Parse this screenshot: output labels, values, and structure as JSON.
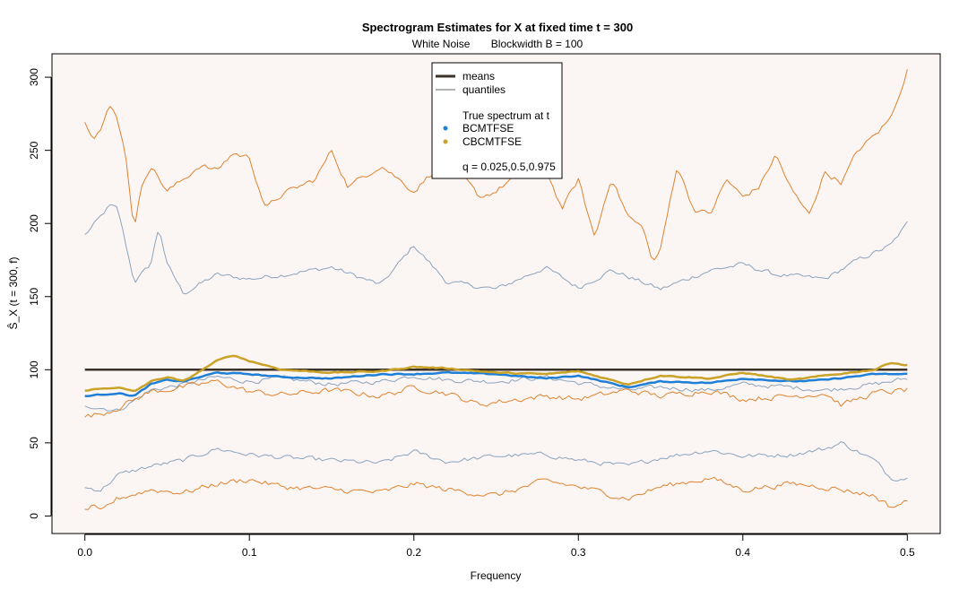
{
  "chart_data": {
    "type": "line",
    "title": "Spectrogram Estimates for X at fixed time t = 300",
    "subtitle": "White Noise       Blockwidth B = 100",
    "xlabel": "Frequency",
    "ylabel": "Ŝ_X (t = 300, f)",
    "xlim": [
      -0.02,
      0.52
    ],
    "ylim": [
      -12,
      316
    ],
    "x_ticks": [
      0.0,
      0.1,
      0.2,
      0.3,
      0.4,
      0.5
    ],
    "x_tick_labels": [
      "0.0",
      "0.1",
      "0.2",
      "0.3",
      "0.4",
      "0.5"
    ],
    "y_ticks": [
      0,
      50,
      100,
      150,
      200,
      250,
      300
    ],
    "y_tick_labels": [
      "0",
      "50",
      "100",
      "150",
      "200",
      "250",
      "300"
    ],
    "grid": false,
    "legend_position": "top-center",
    "legend": {
      "items": [
        "means",
        "quantiles"
      ],
      "heading": "True spectrum at t",
      "methods": [
        "BCMTFSE",
        "CBCMTFSE"
      ],
      "note": "q = 0.025,0.5,0.975"
    },
    "colors": {
      "true_spectrum": "#3b3228",
      "bcmtfse": "#1f7fd6",
      "cbcmtfse": "#c9a227",
      "bc_quantile": "#8aa3bd",
      "cbc_quantile": "#e0822e",
      "plot_background": "#fbf6f4"
    },
    "series": [
      {
        "name": "True spectrum at t",
        "role": "true",
        "x": [
          0.0,
          0.5
        ],
        "values": [
          100,
          100
        ]
      },
      {
        "name": "BCMTFSE",
        "role": "mean",
        "x": [
          0.0,
          0.02,
          0.03,
          0.04,
          0.05,
          0.06,
          0.08,
          0.1,
          0.12,
          0.15,
          0.18,
          0.2,
          0.22,
          0.25,
          0.28,
          0.3,
          0.33,
          0.35,
          0.38,
          0.4,
          0.43,
          0.45,
          0.48,
          0.5
        ],
        "values": [
          82,
          84,
          82,
          90,
          93,
          92,
          98,
          97,
          95,
          94,
          97,
          97,
          98,
          97,
          94,
          96,
          88,
          92,
          91,
          94,
          92,
          93,
          97,
          97
        ]
      },
      {
        "name": "CBCMTFSE",
        "role": "mean",
        "x": [
          0.0,
          0.02,
          0.03,
          0.04,
          0.05,
          0.06,
          0.08,
          0.09,
          0.1,
          0.12,
          0.15,
          0.18,
          0.2,
          0.22,
          0.25,
          0.28,
          0.3,
          0.33,
          0.35,
          0.38,
          0.4,
          0.43,
          0.45,
          0.48,
          0.49,
          0.5
        ],
        "values": [
          86,
          88,
          85,
          92,
          95,
          92,
          106,
          110,
          106,
          100,
          98,
          99,
          102,
          101,
          98,
          97,
          99,
          90,
          96,
          94,
          98,
          93,
          96,
          100,
          105,
          103
        ]
      },
      {
        "name": "BCMTFSE q0.975",
        "role": "quantile",
        "x": [
          0.0,
          0.01,
          0.015,
          0.02,
          0.025,
          0.03,
          0.04,
          0.045,
          0.05,
          0.06,
          0.08,
          0.1,
          0.12,
          0.15,
          0.18,
          0.2,
          0.22,
          0.25,
          0.28,
          0.3,
          0.32,
          0.35,
          0.38,
          0.4,
          0.42,
          0.45,
          0.47,
          0.49,
          0.5
        ],
        "values": [
          192,
          205,
          212,
          210,
          185,
          160,
          172,
          198,
          172,
          152,
          165,
          162,
          165,
          170,
          158,
          185,
          160,
          155,
          170,
          156,
          168,
          155,
          168,
          172,
          165,
          162,
          175,
          185,
          200
        ]
      },
      {
        "name": "BCMTFSE q0.5",
        "role": "quantile",
        "x": [
          0.0,
          0.02,
          0.04,
          0.06,
          0.08,
          0.1,
          0.12,
          0.15,
          0.18,
          0.2,
          0.22,
          0.25,
          0.28,
          0.3,
          0.33,
          0.35,
          0.38,
          0.4,
          0.43,
          0.45,
          0.48,
          0.5
        ],
        "values": [
          76,
          72,
          86,
          90,
          95,
          92,
          94,
          90,
          92,
          96,
          93,
          92,
          95,
          91,
          86,
          88,
          86,
          90,
          88,
          86,
          90,
          94
        ]
      },
      {
        "name": "BCMTFSE q0.025",
        "role": "quantile",
        "x": [
          0.0,
          0.01,
          0.02,
          0.04,
          0.06,
          0.08,
          0.1,
          0.12,
          0.15,
          0.18,
          0.2,
          0.22,
          0.25,
          0.28,
          0.3,
          0.33,
          0.35,
          0.38,
          0.4,
          0.43,
          0.45,
          0.46,
          0.48,
          0.49,
          0.5
        ],
        "values": [
          19,
          18,
          28,
          34,
          38,
          46,
          42,
          40,
          38,
          36,
          44,
          37,
          41,
          42,
          38,
          34,
          40,
          45,
          41,
          42,
          46,
          50,
          38,
          26,
          26
        ]
      },
      {
        "name": "CBCMTFSE q0.975",
        "role": "quantile",
        "x": [
          0.0,
          0.005,
          0.01,
          0.015,
          0.02,
          0.025,
          0.03,
          0.035,
          0.04,
          0.05,
          0.06,
          0.07,
          0.08,
          0.09,
          0.1,
          0.11,
          0.12,
          0.14,
          0.15,
          0.16,
          0.18,
          0.2,
          0.22,
          0.24,
          0.25,
          0.27,
          0.28,
          0.29,
          0.3,
          0.31,
          0.32,
          0.33,
          0.34,
          0.345,
          0.35,
          0.36,
          0.37,
          0.38,
          0.39,
          0.4,
          0.41,
          0.42,
          0.43,
          0.44,
          0.45,
          0.46,
          0.47,
          0.48,
          0.49,
          0.5
        ],
        "values": [
          271,
          260,
          265,
          280,
          272,
          245,
          196,
          228,
          240,
          222,
          230,
          240,
          236,
          248,
          245,
          210,
          220,
          230,
          250,
          225,
          240,
          222,
          245,
          218,
          222,
          240,
          238,
          210,
          230,
          190,
          232,
          205,
          196,
          173,
          182,
          240,
          210,
          206,
          230,
          218,
          225,
          247,
          222,
          206,
          235,
          228,
          250,
          260,
          272,
          305
        ]
      },
      {
        "name": "CBCMTFSE q0.5",
        "role": "quantile",
        "x": [
          0.0,
          0.01,
          0.02,
          0.04,
          0.06,
          0.08,
          0.1,
          0.12,
          0.15,
          0.18,
          0.2,
          0.22,
          0.24,
          0.25,
          0.28,
          0.3,
          0.33,
          0.35,
          0.38,
          0.4,
          0.43,
          0.45,
          0.46,
          0.48,
          0.5
        ],
        "values": [
          68,
          70,
          74,
          85,
          88,
          92,
          85,
          83,
          86,
          82,
          88,
          84,
          76,
          78,
          82,
          80,
          86,
          82,
          86,
          80,
          82,
          84,
          76,
          84,
          86
        ]
      },
      {
        "name": "CBCMTFSE q0.025",
        "role": "quantile",
        "x": [
          0.0,
          0.005,
          0.01,
          0.015,
          0.02,
          0.04,
          0.06,
          0.08,
          0.1,
          0.12,
          0.15,
          0.18,
          0.2,
          0.22,
          0.25,
          0.28,
          0.3,
          0.33,
          0.35,
          0.38,
          0.4,
          0.43,
          0.45,
          0.48,
          0.49,
          0.495,
          0.5
        ],
        "values": [
          5,
          6,
          2,
          8,
          12,
          18,
          16,
          22,
          25,
          20,
          18,
          16,
          22,
          18,
          14,
          24,
          20,
          12,
          20,
          26,
          18,
          22,
          20,
          14,
          6,
          8,
          10
        ]
      }
    ]
  }
}
